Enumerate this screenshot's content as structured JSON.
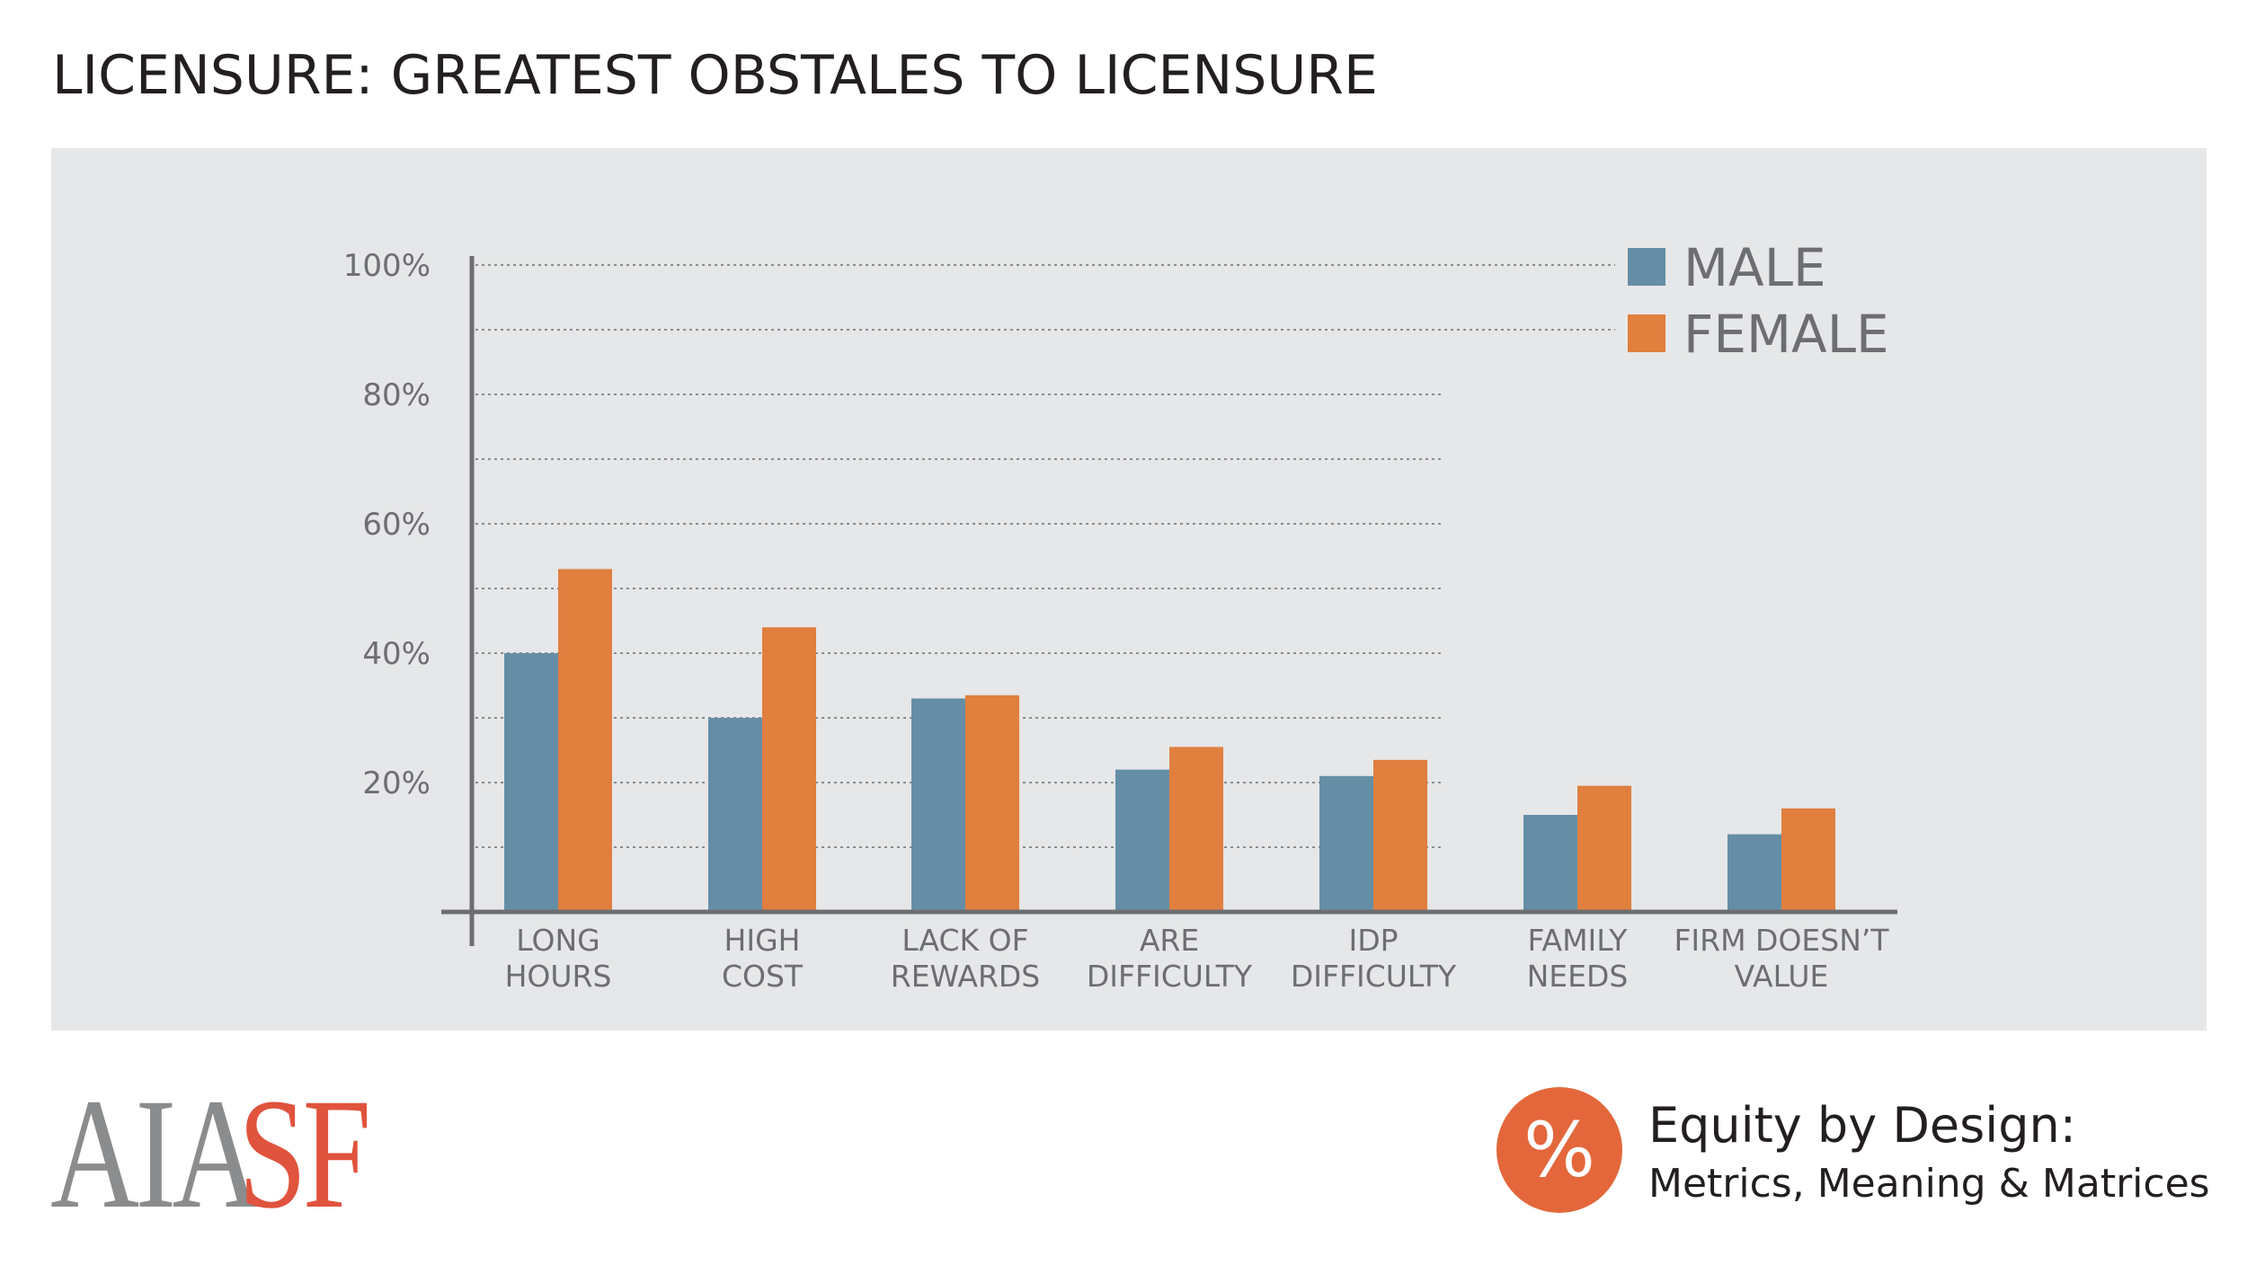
{
  "title": "LICENSURE: GREATEST OBSTALES TO LICENSURE",
  "colors": {
    "male": "#658ea6",
    "female": "#e07f3e",
    "panel_background": "#e6e7e8",
    "text_gray": "#6d6e71",
    "logo_gray": "#8a8c8e",
    "logo_red": "#e0533d",
    "badge_orange": "#e3673b"
  },
  "chart_data": {
    "type": "bar",
    "categories": [
      [
        "LONG",
        "HOURS"
      ],
      [
        "HIGH",
        "COST"
      ],
      [
        "LACK OF",
        "REWARDS"
      ],
      [
        "ARE",
        "DIFFICULTY"
      ],
      [
        "IDP",
        "DIFFICULTY"
      ],
      [
        "FAMILY",
        "NEEDS"
      ],
      [
        "FIRM DOESN’T",
        "VALUE"
      ]
    ],
    "series": [
      {
        "name": "MALE",
        "values": [
          40,
          30,
          33,
          22,
          21,
          15,
          12
        ]
      },
      {
        "name": "FEMALE",
        "values": [
          53,
          44,
          33.5,
          25.5,
          23.5,
          19.5,
          16
        ]
      }
    ],
    "yticks": [
      "20%",
      "40%",
      "60%",
      "80%",
      "100%"
    ],
    "ylim": [
      0,
      100
    ],
    "grid": "dotted horizontal lines every 10%",
    "legend_position": "top-right",
    "xlabel": "",
    "ylabel": ""
  },
  "footer": {
    "logo": {
      "aia": "AIA",
      "sf": "SF"
    },
    "badge_symbol": "%",
    "badge_icon": "percent-icon",
    "equity_title": "Equity by Design:",
    "equity_subtitle": "Metrics, Meaning & Matrices"
  }
}
